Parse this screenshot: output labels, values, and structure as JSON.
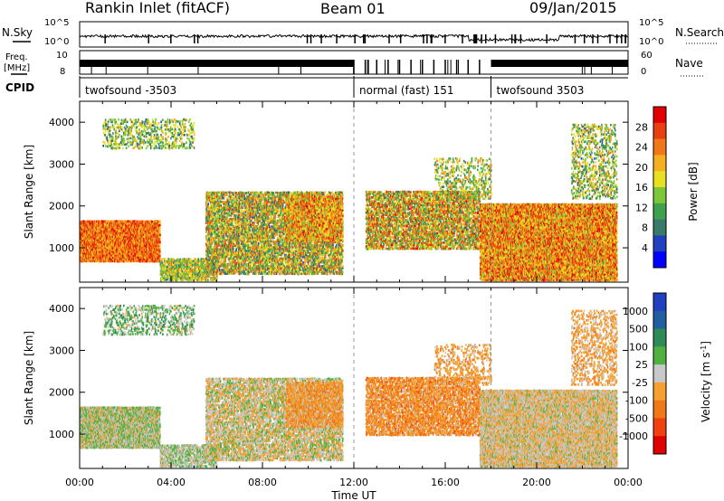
{
  "header": {
    "station": "Rankin Inlet (fitACF)",
    "beam": "Beam 01",
    "date": "09/Jan/2015"
  },
  "params": {
    "nsky_label": "N.Sky",
    "nsky_ticks": [
      "10^5",
      "10^0"
    ],
    "nsearch_label": "N.Search",
    "nsearch_ticks": [
      "10^5",
      "10^0"
    ],
    "freq_label_1": "Freq.",
    "freq_label_2": "[MHz]",
    "freq_ticks": [
      "10",
      "8"
    ],
    "nave_label": "Nave",
    "nave_ticks": [
      "60",
      "0"
    ],
    "cpid_label": "CPID",
    "cpid_segments": [
      {
        "label": "twofsound -3503",
        "start_hour": 0
      },
      {
        "label": "normal (fast) 151",
        "start_hour": 12
      },
      {
        "label": "twofsound 3503",
        "start_hour": 18
      }
    ]
  },
  "chart_data": [
    {
      "type": "heatmap",
      "quantity": "Power",
      "colorbar_label": "Power [dB]",
      "colorbar_ticks": [
        "28",
        "24",
        "20",
        "16",
        "12",
        "8",
        "4"
      ],
      "colorbar_range": [
        0,
        32
      ],
      "colors": [
        "#0000ff",
        "#2040c0",
        "#3a7a6a",
        "#3fa050",
        "#7cc83a",
        "#e8e020",
        "#f5b020",
        "#f07818",
        "#e84010",
        "#e00000"
      ],
      "ylabel": "Slant Range [km]",
      "yticks": [
        "4000",
        "3000",
        "2000",
        "1000"
      ],
      "ylim": [
        180,
        4500
      ],
      "xlim": [
        0,
        24
      ],
      "scatter_bands": [
        {
          "t0": 0.0,
          "t1": 3.5,
          "r0": 700,
          "r1": 1700,
          "density": 0.95,
          "vmin": 18,
          "vmax": 31
        },
        {
          "t0": 3.5,
          "t1": 6.0,
          "r0": 250,
          "r1": 800,
          "density": 0.6,
          "vmin": 8,
          "vmax": 24
        },
        {
          "t0": 1.0,
          "t1": 5.0,
          "r0": 3400,
          "r1": 4100,
          "density": 0.25,
          "vmin": 6,
          "vmax": 22
        },
        {
          "t0": 5.5,
          "t1": 11.5,
          "r0": 400,
          "r1": 2400,
          "density": 0.55,
          "vmin": 6,
          "vmax": 28
        },
        {
          "t0": 9.0,
          "t1": 11.5,
          "r0": 1200,
          "r1": 2300,
          "density": 0.5,
          "vmin": 14,
          "vmax": 30
        },
        {
          "t0": 12.5,
          "t1": 17.5,
          "r0": 1000,
          "r1": 2400,
          "density": 0.55,
          "vmin": 8,
          "vmax": 30
        },
        {
          "t0": 15.5,
          "t1": 18.0,
          "r0": 2200,
          "r1": 3200,
          "density": 0.2,
          "vmin": 8,
          "vmax": 24
        },
        {
          "t0": 17.5,
          "t1": 23.5,
          "r0": 250,
          "r1": 2100,
          "density": 0.85,
          "vmin": 14,
          "vmax": 31
        },
        {
          "t0": 21.5,
          "t1": 23.5,
          "r0": 2200,
          "r1": 4000,
          "density": 0.25,
          "vmin": 6,
          "vmax": 24
        }
      ]
    },
    {
      "type": "heatmap",
      "quantity": "Velocity",
      "colorbar_label": "Velocity [m s^-1]",
      "colorbar_ticks": [
        "1000",
        "500",
        "100",
        "25",
        "-25",
        "-100",
        "-500",
        "-1000"
      ],
      "colorbar_range": [
        -1200,
        1200
      ],
      "colors": [
        "#e00000",
        "#f04010",
        "#f07818",
        "#f5a030",
        "#c8c8c8",
        "#50b040",
        "#2e8b57",
        "#2060a0",
        "#2040c0"
      ],
      "ylabel": "Slant Range [km]",
      "yticks": [
        "4000",
        "3000",
        "2000",
        "1000"
      ],
      "ylim": [
        180,
        4500
      ],
      "xlim": [
        0,
        24
      ],
      "xticks": [
        "00:00",
        "04:00",
        "08:00",
        "12:00",
        "16:00",
        "20:00",
        "00:00"
      ],
      "xlabel": "Time UT",
      "scatter_bands": [
        {
          "t0": 0.0,
          "t1": 3.5,
          "r0": 700,
          "r1": 1700,
          "density": 0.95,
          "vmin": -300,
          "vmax": 400
        },
        {
          "t0": 3.5,
          "t1": 6.0,
          "r0": 250,
          "r1": 800,
          "density": 0.6,
          "vmin": -200,
          "vmax": 300
        },
        {
          "t0": 1.0,
          "t1": 5.0,
          "r0": 3400,
          "r1": 4100,
          "density": 0.25,
          "vmin": -200,
          "vmax": 600
        },
        {
          "t0": 5.5,
          "t1": 11.5,
          "r0": 400,
          "r1": 2400,
          "density": 0.55,
          "vmin": -400,
          "vmax": 300
        },
        {
          "t0": 9.0,
          "t1": 11.5,
          "r0": 1200,
          "r1": 2300,
          "density": 0.5,
          "vmin": -600,
          "vmax": -50
        },
        {
          "t0": 12.5,
          "t1": 17.5,
          "r0": 1000,
          "r1": 2400,
          "density": 0.55,
          "vmin": -700,
          "vmax": -60
        },
        {
          "t0": 15.5,
          "t1": 18.0,
          "r0": 2200,
          "r1": 3200,
          "density": 0.2,
          "vmin": -500,
          "vmax": -50
        },
        {
          "t0": 17.5,
          "t1": 23.5,
          "r0": 250,
          "r1": 2100,
          "density": 0.85,
          "vmin": -400,
          "vmax": 200
        },
        {
          "t0": 21.5,
          "t1": 23.5,
          "r0": 2200,
          "r1": 4000,
          "density": 0.25,
          "vmin": -500,
          "vmax": 0
        }
      ]
    }
  ]
}
